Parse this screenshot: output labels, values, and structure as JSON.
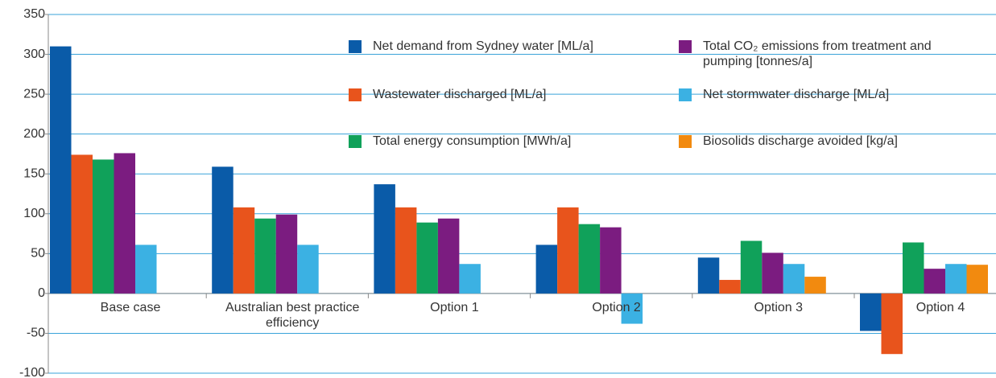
{
  "chart_data": {
    "type": "bar",
    "categories": [
      "Base case",
      "Australian best practice efficiency",
      "Option 1",
      "Option 2",
      "Option 3",
      "Option 4"
    ],
    "series": [
      {
        "name": "Net demand from Sydney water [ML/a]",
        "color": "#0a5ba8",
        "values": [
          310,
          159,
          137,
          61,
          45,
          -47
        ]
      },
      {
        "name": "Wastewater discharged [ML/a]",
        "color": "#e8541c",
        "values": [
          174,
          108,
          108,
          108,
          17,
          -76
        ]
      },
      {
        "name": "Total energy consumption [MWh/a]",
        "color": "#10a15a",
        "values": [
          168,
          94,
          89,
          87,
          66,
          64
        ]
      },
      {
        "name": "Total CO₂ emissions from treatment and pumping [tonnes/a]",
        "color": "#7b1c80",
        "values": [
          176,
          99,
          94,
          83,
          51,
          31
        ]
      },
      {
        "name": "Net stormwater discharge [ML/a]",
        "color": "#3bb1e3",
        "values": [
          61,
          61,
          37,
          -38,
          37,
          37
        ]
      },
      {
        "name": "Biosolids discharge avoided [kg/a]",
        "color": "#f28a0f",
        "values": [
          null,
          null,
          null,
          null,
          21,
          36
        ]
      }
    ],
    "ylim": [
      -100,
      350
    ],
    "yticks": [
      -100,
      -50,
      0,
      50,
      100,
      150,
      200,
      250,
      300,
      350
    ],
    "grid": true
  }
}
